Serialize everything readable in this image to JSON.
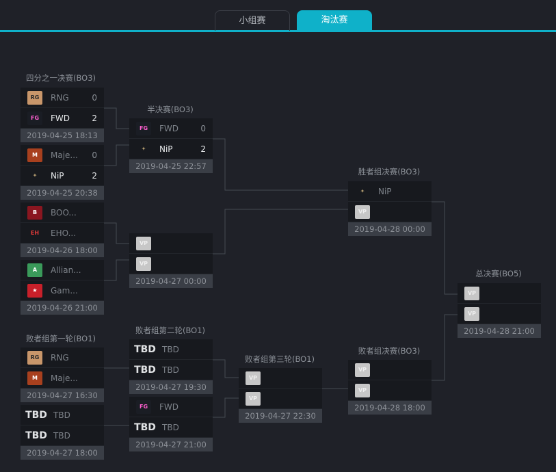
{
  "tabs": [
    {
      "label": "小组赛",
      "active": false
    },
    {
      "label": "淘汰赛",
      "active": true
    }
  ],
  "colors": {
    "accent": "#0fb1c9"
  },
  "rounds": [
    {
      "title": "四分之一决赛(BO3)"
    },
    {
      "title": "半决赛(BO3)"
    },
    {
      "title": "胜者组决赛(BO3)"
    },
    {
      "title": "总决赛(BO5)"
    },
    {
      "title": "败者组第一轮(BO1)"
    },
    {
      "title": "败者组第二轮(BO1)"
    },
    {
      "title": "败者组第三轮(BO1)"
    },
    {
      "title": "败者组决赛(BO3)"
    }
  ],
  "matches": [
    {
      "teams": [
        {
          "name": "RNG",
          "score": "0",
          "logo": "rng"
        },
        {
          "name": "FWD",
          "score": "2",
          "logo": "fwd",
          "win": true
        }
      ],
      "date": "2019-04-25 18:13"
    },
    {
      "teams": [
        {
          "name": "Maje...",
          "score": "0",
          "logo": "majestic"
        },
        {
          "name": "NiP",
          "score": "2",
          "logo": "nip",
          "win": true
        }
      ],
      "date": "2019-04-25 20:38"
    },
    {
      "teams": [
        {
          "name": "BOO...",
          "logo": "boom"
        },
        {
          "name": "EHO...",
          "logo": "ehome"
        }
      ],
      "date": "2019-04-26 18:00"
    },
    {
      "teams": [
        {
          "name": "Allian...",
          "logo": "alliance"
        },
        {
          "name": "Gam...",
          "logo": "gambit"
        }
      ],
      "date": "2019-04-26 21:00"
    },
    {
      "teams": [
        {
          "name": "FWD",
          "score": "0",
          "logo": "fwd"
        },
        {
          "name": "NiP",
          "score": "2",
          "logo": "nip",
          "win": true
        }
      ],
      "date": "2019-04-25 22:57"
    },
    {
      "teams": [
        {
          "name": "",
          "logo": "vp"
        },
        {
          "name": "",
          "logo": "vp"
        }
      ],
      "date": "2019-04-27 00:00"
    },
    {
      "teams": [
        {
          "name": "NiP",
          "logo": "nip"
        },
        {
          "name": "",
          "logo": "vp"
        }
      ],
      "date": "2019-04-28 00:00"
    },
    {
      "teams": [
        {
          "name": "",
          "logo": "vp"
        },
        {
          "name": "",
          "logo": "vp"
        }
      ],
      "date": "2019-04-28 21:00"
    },
    {
      "teams": [
        {
          "name": "RNG",
          "logo": "rng"
        },
        {
          "name": "Maje...",
          "logo": "majestic"
        }
      ],
      "date": "2019-04-27 16:30"
    },
    {
      "teams": [
        {
          "name": "TBD",
          "logo": "tbd"
        },
        {
          "name": "TBD",
          "logo": "tbd"
        }
      ],
      "date": "2019-04-27 18:00"
    },
    {
      "teams": [
        {
          "name": "TBD",
          "logo": "tbd"
        },
        {
          "name": "TBD",
          "logo": "tbd"
        }
      ],
      "date": "2019-04-27 19:30"
    },
    {
      "teams": [
        {
          "name": "FWD",
          "logo": "fwd"
        },
        {
          "name": "TBD",
          "logo": "tbd"
        }
      ],
      "date": "2019-04-27 21:00"
    },
    {
      "teams": [
        {
          "name": "",
          "logo": "vp"
        },
        {
          "name": "",
          "logo": "vp"
        }
      ],
      "date": "2019-04-27 22:30"
    },
    {
      "teams": [
        {
          "name": "",
          "logo": "vp"
        },
        {
          "name": "",
          "logo": "vp"
        }
      ],
      "date": "2019-04-28 18:00"
    }
  ]
}
